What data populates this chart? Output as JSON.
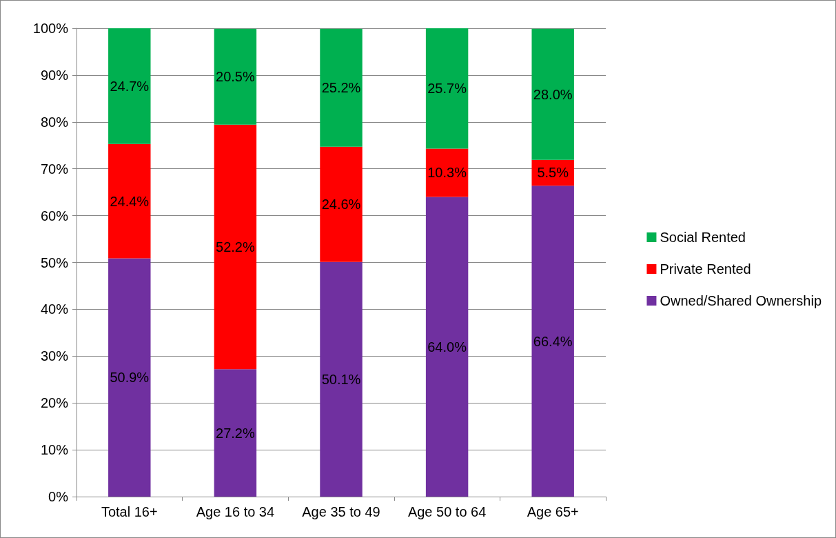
{
  "chart_data": {
    "type": "bar",
    "stacked": true,
    "categories": [
      "Total 16+",
      "Age 16 to 34",
      "Age 35 to 49",
      "Age 50 to 64",
      "Age 65+"
    ],
    "series": [
      {
        "name": "Owned/Shared Ownership",
        "color": "#7030a0",
        "values": [
          50.9,
          27.2,
          50.1,
          64.0,
          66.4
        ],
        "value_labels": [
          "50.9%",
          "27.2%",
          "50.1%",
          "64.0%",
          "66.4%"
        ]
      },
      {
        "name": "Private Rented",
        "color": "#ff0000",
        "values": [
          24.4,
          52.2,
          24.6,
          10.3,
          5.5
        ],
        "value_labels": [
          "24.4%",
          "52.2%",
          "24.6%",
          "10.3%",
          "5.5%"
        ]
      },
      {
        "name": "Social Rented",
        "color": "#00b050",
        "values": [
          24.7,
          20.5,
          25.2,
          25.7,
          28.0
        ],
        "value_labels": [
          "24.7%",
          "20.5%",
          "25.2%",
          "25.7%",
          "28.0%"
        ]
      }
    ],
    "ylim": [
      0,
      100
    ],
    "yticks": [
      {
        "value": 0,
        "label": "0%"
      },
      {
        "value": 10,
        "label": "10%"
      },
      {
        "value": 20,
        "label": "20%"
      },
      {
        "value": 30,
        "label": "30%"
      },
      {
        "value": 40,
        "label": "40%"
      },
      {
        "value": 50,
        "label": "50%"
      },
      {
        "value": 60,
        "label": "60%"
      },
      {
        "value": 70,
        "label": "70%"
      },
      {
        "value": 80,
        "label": "80%"
      },
      {
        "value": 90,
        "label": "90%"
      },
      {
        "value": 100,
        "label": "100%"
      }
    ],
    "grid": "y",
    "legend": "right"
  }
}
